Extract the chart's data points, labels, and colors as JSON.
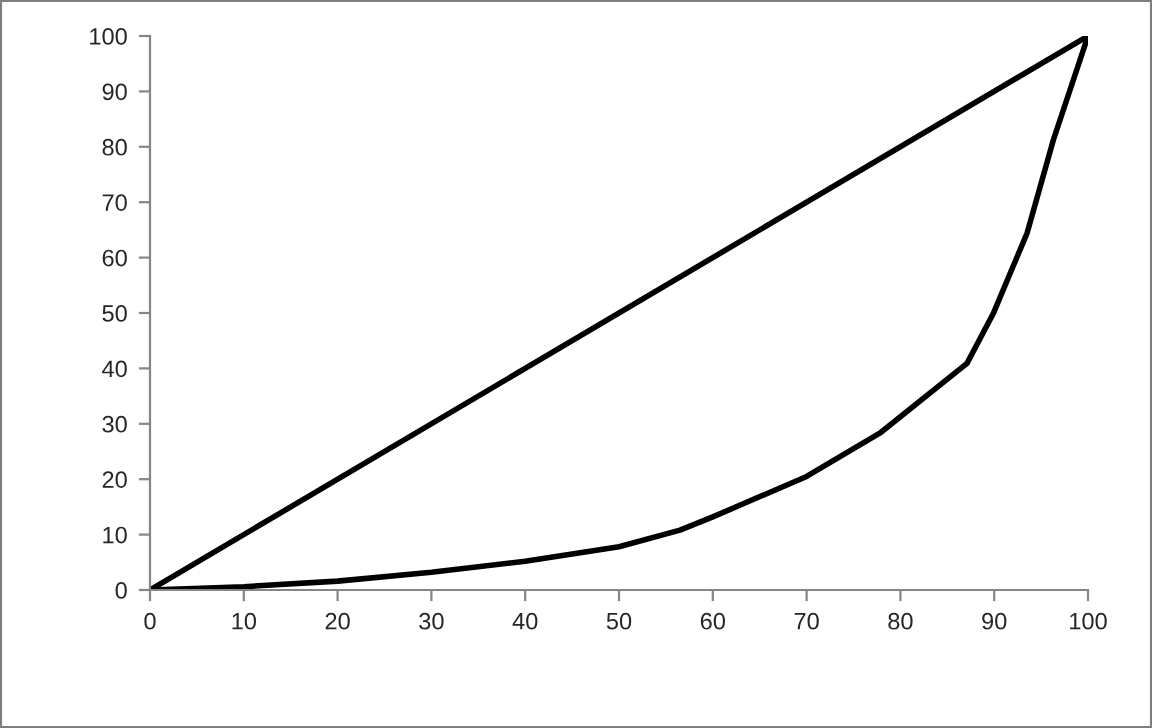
{
  "chart_data": {
    "type": "line",
    "xlim": [
      0,
      100
    ],
    "ylim": [
      0,
      100
    ],
    "xticks": [
      0,
      10,
      20,
      30,
      40,
      50,
      60,
      70,
      80,
      90,
      100
    ],
    "yticks": [
      0,
      10,
      20,
      30,
      40,
      50,
      60,
      70,
      80,
      90,
      100
    ],
    "grid": false,
    "marker": "none",
    "line_style": "solid",
    "series": [
      {
        "color": "#000000",
        "x": [
          0,
          100
        ],
        "values": [
          0,
          100
        ]
      },
      {
        "color": "#000000",
        "x": [
          0,
          10,
          20,
          30,
          40,
          50,
          56.5,
          60,
          70,
          77.8,
          87.1,
          89.9,
          93.5,
          96.3,
          100
        ],
        "values": [
          0,
          0.6,
          1.6,
          3.2,
          5.2,
          7.8,
          10.8,
          13.2,
          20.5,
          28.3,
          40.9,
          49.9,
          64.4,
          81.2,
          100
        ]
      }
    ]
  }
}
